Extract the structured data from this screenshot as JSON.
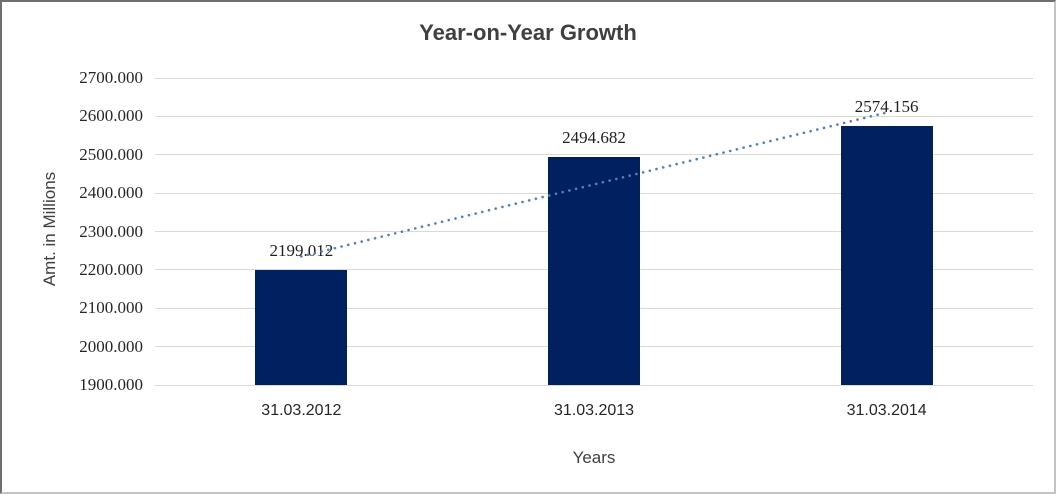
{
  "chart_data": {
    "type": "bar",
    "title": "Year-on-Year Growth",
    "xlabel": "Years",
    "ylabel": "Amt. in Millions",
    "categories": [
      "31.03.2012",
      "31.03.2013",
      "31.03.2014"
    ],
    "values": [
      2199.012,
      2494.682,
      2574.156
    ],
    "data_labels": [
      "2199.012",
      "2494.682",
      "2574.156"
    ],
    "ylim": [
      1900,
      2700
    ],
    "ytick_step": 100,
    "ytick_labels": [
      "1900.000",
      "2000.000",
      "2100.000",
      "2200.000",
      "2300.000",
      "2400.000",
      "2500.000",
      "2600.000",
      "2700.000"
    ],
    "grid": "horizontal",
    "legend": "none",
    "trendline": {
      "type": "linear",
      "style": "dotted"
    },
    "colors": {
      "bar": "#002060",
      "trendline": "#4f81bd",
      "gridline": "#d9d9d9",
      "axis_text": "#262626",
      "title_text": "#3f3f3f"
    }
  }
}
